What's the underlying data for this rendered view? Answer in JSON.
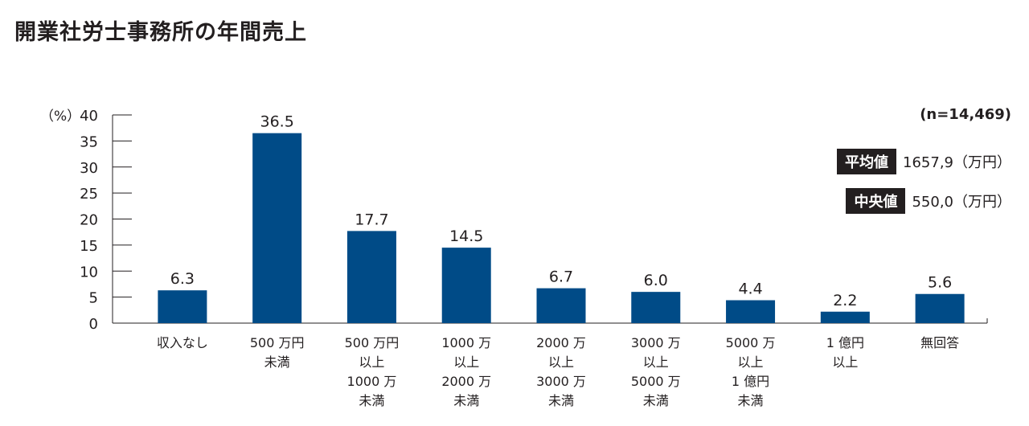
{
  "title": "開業社労士事務所の年間売上",
  "n_label": "(n=14,469)",
  "stats": {
    "mean_label": "平均値",
    "mean_value": "1657,9（万円）",
    "median_label": "中央値",
    "median_value": "550,0（万円）"
  },
  "chart_data": {
    "type": "bar",
    "ylabel": "（%）",
    "ylim": [
      0,
      40
    ],
    "yticks": [
      0,
      5,
      10,
      15,
      20,
      25,
      30,
      35,
      40
    ],
    "categories": [
      [
        "収入なし"
      ],
      [
        "500 万円",
        "未満"
      ],
      [
        "500 万円",
        "以上",
        "1000 万",
        "未満"
      ],
      [
        "1000 万",
        "以上",
        "2000 万",
        "未満"
      ],
      [
        "2000 万",
        "以上",
        "3000 万",
        "未満"
      ],
      [
        "3000 万",
        "以上",
        "5000 万",
        "未満"
      ],
      [
        "5000 万",
        "以上",
        "1 億円",
        "未満"
      ],
      [
        "1 億円",
        "以上"
      ],
      [
        "無回答"
      ]
    ],
    "values": [
      6.3,
      36.5,
      17.7,
      14.5,
      6.7,
      6.0,
      4.4,
      2.2,
      5.6
    ],
    "value_labels": [
      "6.3",
      "36.5",
      "17.7",
      "14.5",
      "6.7",
      "6.0",
      "4.4",
      "2.2",
      "5.6"
    ],
    "bar_color": "#004b87",
    "grid": false
  }
}
